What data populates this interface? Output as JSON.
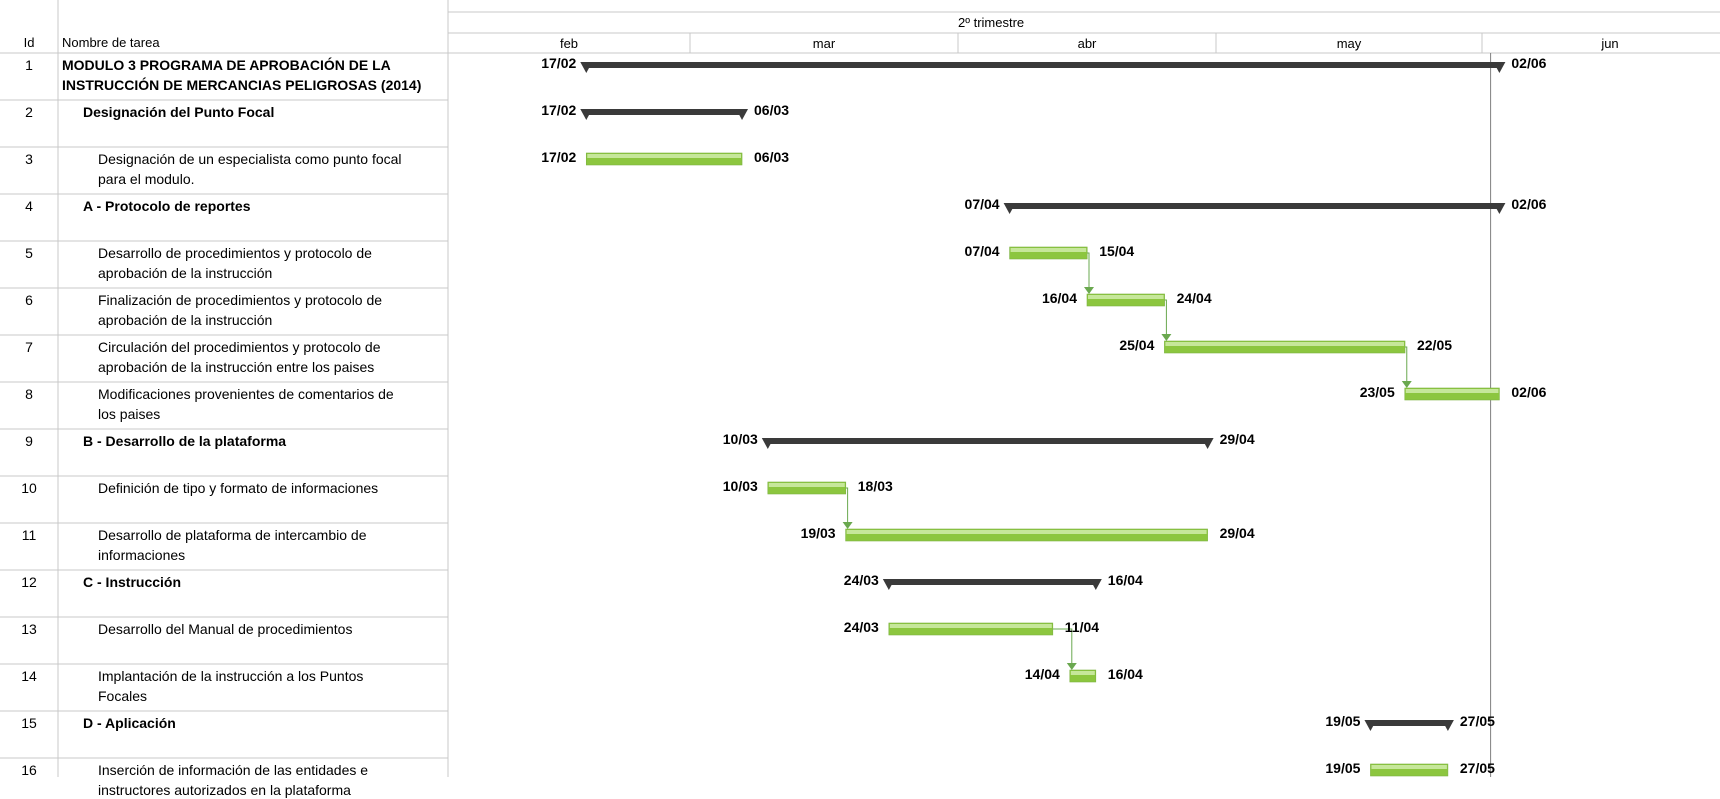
{
  "header": {
    "id_label": "Id",
    "name_label": "Nombre de tarea",
    "quarter_label": "2º trimestre",
    "months": [
      "feb",
      "mar",
      "abr",
      "may",
      "jun"
    ]
  },
  "chart_data": {
    "type": "gantt",
    "timeline_start": "2014-02-01",
    "timeline_end": "2014-06-30",
    "tasks": [
      {
        "id": "1",
        "name_lines": [
          "MODULO 3 PROGRAMA DE APROBACIÓN DE LA",
          "INSTRUCCIÓN DE MERCANCIAS PELIGROSAS (2014)"
        ],
        "level": 0,
        "summary": true,
        "start": "2014-02-17",
        "end": "2014-06-02",
        "start_label": "17/02",
        "end_label": "02/06"
      },
      {
        "id": "2",
        "name_lines": [
          "Designación del Punto Focal"
        ],
        "level": 1,
        "summary": true,
        "start": "2014-02-17",
        "end": "2014-03-06",
        "start_label": "17/02",
        "end_label": "06/03"
      },
      {
        "id": "3",
        "name_lines": [
          "Designación de un especialista como punto focal",
          "para el modulo."
        ],
        "level": 2,
        "summary": false,
        "start": "2014-02-17",
        "end": "2014-03-06",
        "start_label": "17/02",
        "end_label": "06/03"
      },
      {
        "id": "4",
        "name_lines": [
          "A - Protocolo de reportes"
        ],
        "level": 1,
        "summary": true,
        "start": "2014-04-07",
        "end": "2014-06-02",
        "start_label": "07/04",
        "end_label": "02/06"
      },
      {
        "id": "5",
        "name_lines": [
          "Desarrollo de procedimientos y protocolo de",
          "aprobación de la instrucción"
        ],
        "level": 2,
        "summary": false,
        "start": "2014-04-07",
        "end": "2014-04-15",
        "start_label": "07/04",
        "end_label": "15/04"
      },
      {
        "id": "6",
        "name_lines": [
          "Finalización de procedimientos y protocolo de",
          "aprobación de la instrucción"
        ],
        "level": 2,
        "summary": false,
        "start": "2014-04-16",
        "end": "2014-04-24",
        "start_label": "16/04",
        "end_label": "24/04"
      },
      {
        "id": "7",
        "name_lines": [
          "Circulación del procedimientos y protocolo de",
          "aprobación de la instrucción entre los paises"
        ],
        "level": 2,
        "summary": false,
        "start": "2014-04-25",
        "end": "2014-05-22",
        "start_label": "25/04",
        "end_label": "22/05"
      },
      {
        "id": "8",
        "name_lines": [
          "Modificaciones provenientes de comentarios de",
          "los paises"
        ],
        "level": 2,
        "summary": false,
        "start": "2014-05-23",
        "end": "2014-06-02",
        "start_label": "23/05",
        "end_label": "02/06"
      },
      {
        "id": "9",
        "name_lines": [
          "B - Desarrollo de la plataforma"
        ],
        "level": 1,
        "summary": true,
        "start": "2014-03-10",
        "end": "2014-04-29",
        "start_label": "10/03",
        "end_label": "29/04"
      },
      {
        "id": "10",
        "name_lines": [
          "Definición de tipo y formato de informaciones"
        ],
        "level": 2,
        "summary": false,
        "start": "2014-03-10",
        "end": "2014-03-18",
        "start_label": "10/03",
        "end_label": "18/03"
      },
      {
        "id": "11",
        "name_lines": [
          "Desarrollo de plataforma de intercambio de",
          "informaciones"
        ],
        "level": 2,
        "summary": false,
        "start": "2014-03-19",
        "end": "2014-04-29",
        "start_label": "19/03",
        "end_label": "29/04"
      },
      {
        "id": "12",
        "name_lines": [
          "C - Instrucción"
        ],
        "level": 1,
        "summary": true,
        "start": "2014-03-24",
        "end": "2014-04-16",
        "start_label": "24/03",
        "end_label": "16/04"
      },
      {
        "id": "13",
        "name_lines": [
          "Desarrollo del Manual de procedimientos"
        ],
        "level": 2,
        "summary": false,
        "start": "2014-03-24",
        "end": "2014-04-11",
        "start_label": "24/03",
        "end_label": "11/04"
      },
      {
        "id": "14",
        "name_lines": [
          "Implantación de la instrucción a los Puntos",
          "Focales"
        ],
        "level": 2,
        "summary": false,
        "start": "2014-04-14",
        "end": "2014-04-16",
        "start_label": "14/04",
        "end_label": "16/04"
      },
      {
        "id": "15",
        "name_lines": [
          "D - Aplicación"
        ],
        "level": 1,
        "summary": true,
        "start": "2014-05-19",
        "end": "2014-05-27",
        "start_label": "19/05",
        "end_label": "27/05"
      },
      {
        "id": "16",
        "name_lines": [
          "Inserción de información de las entidades e",
          "instructores autorizados en la plataforma"
        ],
        "level": 2,
        "summary": false,
        "start": "2014-05-19",
        "end": "2014-05-27",
        "start_label": "19/05",
        "end_label": "27/05"
      }
    ],
    "dependencies": [
      [
        "5",
        "6"
      ],
      [
        "6",
        "7"
      ],
      [
        "7",
        "8"
      ],
      [
        "10",
        "11"
      ],
      [
        "13",
        "14"
      ]
    ],
    "colors": {
      "summary_bar": "#3a3a3a",
      "task_bar": "#8cc63f",
      "task_bar_light": "#c6e79a",
      "grid": "#c8c8c8",
      "status_line": "#7f7f7f"
    }
  }
}
